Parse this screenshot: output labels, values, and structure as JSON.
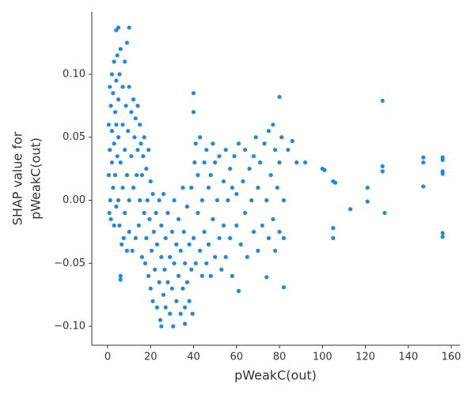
{
  "chart_data": {
    "type": "scatter",
    "xlabel": "pWeakC(out)",
    "ylabel": [
      "SHAP value for",
      "pWeakC(out)"
    ],
    "color": "#1e88e5",
    "xlim": [
      -7.37,
      164.06
    ],
    "ylim": [
      -0.115,
      0.1495
    ],
    "xticks": [
      0,
      20,
      40,
      60,
      80,
      100,
      120,
      140,
      160
    ],
    "yticks": [
      {
        "value": -0.1,
        "label": "−0.10"
      },
      {
        "value": -0.05,
        "label": "−0.05"
      },
      {
        "value": 0,
        "label": "0.00"
      },
      0.05,
      {
        "value": 0.1,
        "label": "0.10"
      }
    ],
    "x": [
      0.5,
      0.5,
      0.8,
      1,
      1,
      1.2,
      1.5,
      1.5,
      2,
      2,
      2,
      2.5,
      2.5,
      3,
      3,
      3,
      3.5,
      3.5,
      4,
      4,
      4,
      4.5,
      4.5,
      5,
      5,
      5,
      5.5,
      5.5,
      6,
      6,
      6.5,
      7,
      7,
      7,
      7.5,
      8,
      8,
      8,
      8.5,
      9,
      9,
      9,
      9.5,
      10,
      10,
      10,
      11,
      11,
      11.5,
      12,
      12,
      12.5,
      13,
      13,
      13.5,
      14,
      14,
      14.5,
      15,
      15,
      15.5,
      16,
      16,
      16.5,
      17,
      17,
      17.5,
      18,
      18,
      18.5,
      19,
      19,
      19.5,
      20,
      20,
      20.5,
      21,
      21,
      21.5,
      22,
      22.5,
      23,
      23,
      24,
      24,
      24.5,
      25,
      25,
      26,
      26,
      26.5,
      27,
      27,
      28,
      28,
      29,
      29,
      30,
      30,
      30.5,
      31,
      31,
      32,
      32,
      33,
      33,
      34,
      34,
      35,
      35,
      35.5,
      36,
      36,
      37,
      37,
      38,
      38,
      39,
      39,
      39.5,
      40,
      40,
      40,
      40.5,
      41,
      41,
      42,
      42,
      43,
      43,
      44,
      44,
      45,
      45,
      46,
      46,
      47,
      47,
      48,
      48,
      49,
      49,
      50,
      50,
      51,
      52,
      52,
      53,
      54,
      54,
      55,
      55,
      56,
      57,
      57,
      58,
      58,
      59,
      60,
      60,
      61,
      61,
      62,
      63,
      64,
      64,
      65,
      66,
      67,
      68,
      68,
      69,
      70,
      70,
      71,
      72,
      73,
      74,
      74,
      75,
      75,
      76,
      77,
      77,
      78,
      78,
      79,
      80,
      80,
      80,
      81,
      82,
      82,
      82,
      84,
      86,
      88,
      92,
      100,
      101,
      105,
      106,
      105,
      105,
      113,
      121,
      121,
      128,
      128,
      128,
      129,
      147,
      147,
      147,
      156,
      156,
      156,
      156,
      156,
      156,
      4,
      5,
      10,
      6,
      6,
      25,
      36
    ],
    "values": [
      0.02,
      0.06,
      -0.01,
      0.09,
      0.04,
      0.0,
      0.075,
      -0.015,
      0.1,
      0.03,
      0.055,
      0.01,
      0.085,
      0.11,
      -0.02,
      0.045,
      0.07,
      0.02,
      0.095,
      -0.005,
      0.06,
      0.035,
      0.115,
      0.08,
      0.0,
      0.05,
      -0.02,
      0.1,
      0.12,
      0.03,
      -0.035,
      0.09,
      0.06,
      0.01,
      -0.03,
      0.11,
      0.04,
      -0.01,
      0.075,
      0.125,
      0.02,
      -0.04,
      0.055,
      0.09,
      0.0,
      -0.025,
      0.07,
      0.035,
      -0.04,
      0.08,
      0.01,
      0.05,
      0.065,
      -0.03,
      0.02,
      0.075,
      0.04,
      -0.02,
      0.06,
      0.0,
      0.045,
      -0.045,
      0.02,
      0.035,
      -0.01,
      0.05,
      -0.05,
      0.025,
      -0.03,
      0.0,
      0.04,
      -0.06,
      -0.015,
      0.015,
      -0.07,
      -0.04,
      0.005,
      -0.08,
      -0.025,
      -0.055,
      -0.01,
      -0.085,
      -0.035,
      0.0,
      -0.065,
      -0.095,
      -0.045,
      -0.02,
      -0.075,
      0.005,
      -0.055,
      -0.03,
      -0.085,
      -0.065,
      -0.01,
      -0.045,
      -0.09,
      -0.025,
      -0.07,
      -0.1,
      -0.05,
      0.0,
      -0.08,
      -0.035,
      -0.015,
      -0.06,
      -0.09,
      -0.04,
      0.01,
      -0.07,
      -0.025,
      -0.085,
      -0.05,
      -0.005,
      -0.065,
      -0.035,
      -0.08,
      0.01,
      -0.055,
      -0.09,
      0.085,
      0.07,
      -0.03,
      0.03,
      -0.05,
      0.045,
      -0.01,
      0.02,
      -0.04,
      0.05,
      -0.06,
      0.0,
      0.03,
      -0.025,
      -0.05,
      0.04,
      0.01,
      -0.035,
      -0.06,
      0.02,
      0.045,
      -0.015,
      -0.045,
      0.03,
      0.0,
      -0.03,
      0.035,
      -0.055,
      0.015,
      -0.02,
      0.04,
      -0.045,
      0.0,
      -0.03,
      0.025,
      -0.06,
      0.01,
      0.035,
      -0.02,
      0.005,
      -0.072,
      0.045,
      -0.035,
      0.015,
      -0.01,
      0.04,
      -0.045,
      0.025,
      0.0,
      -0.025,
      0.035,
      0.05,
      -0.04,
      0.01,
      0.03,
      -0.02,
      0.045,
      -0.061,
      0.0,
      0.055,
      -0.03,
      0.02,
      0.06,
      -0.015,
      0.04,
      -0.04,
      0.01,
      0.082,
      0.03,
      -0.025,
      0.05,
      -0.069,
      0.0,
      -0.03,
      0.04,
      0.047,
      0.03,
      0.03,
      0.025,
      0.024,
      0.015,
      0.014,
      -0.022,
      -0.03,
      -0.007,
      0.01,
      -0.001,
      0.079,
      0.027,
      0.023,
      -0.01,
      0.034,
      0.03,
      0.011,
      0.034,
      0.032,
      0.023,
      0.021,
      -0.026,
      -0.029,
      0.135,
      0.137,
      0.137,
      -0.063,
      -0.06,
      -0.1,
      -0.098
    ]
  }
}
